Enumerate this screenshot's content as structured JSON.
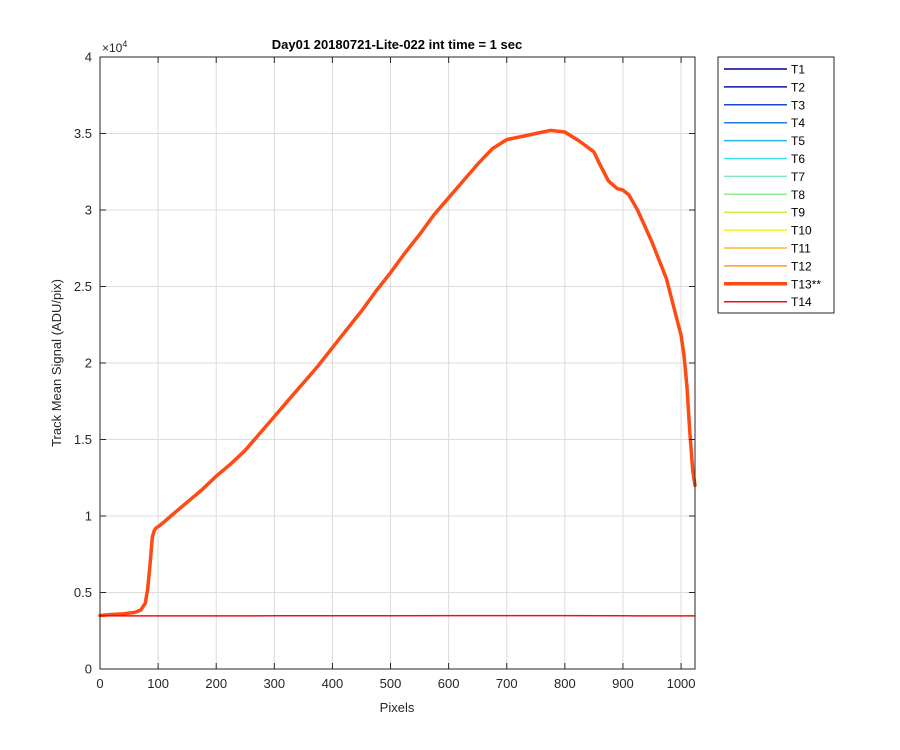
{
  "chart_data": {
    "type": "line",
    "title": "Day01 20180721-Lite-022 int time = 1 sec",
    "xlabel": "Pixels",
    "ylabel": "Track Mean Signal (ADU/pix)",
    "xlim": [
      0,
      1024
    ],
    "ylim": [
      0,
      40000
    ],
    "xticks": [
      0,
      100,
      200,
      300,
      400,
      500,
      600,
      700,
      800,
      900,
      1000
    ],
    "yticks": [
      0,
      5000,
      10000,
      15000,
      20000,
      25000,
      30000,
      35000,
      40000
    ],
    "ytick_labels": [
      "0",
      "0.5",
      "1",
      "1.5",
      "2",
      "2.5",
      "3",
      "3.5",
      "4"
    ],
    "y_exponent_label": "×10",
    "y_exponent_power": "4",
    "grid": true,
    "legend_position": "outside-right",
    "series": [
      {
        "name": "T1",
        "color": "#00008f",
        "width": 1.5,
        "shape": "hidden"
      },
      {
        "name": "T2",
        "color": "#0016b5",
        "width": 1.5,
        "shape": "hidden"
      },
      {
        "name": "T3",
        "color": "#1a47d6",
        "width": 1.5,
        "shape": "hidden"
      },
      {
        "name": "T4",
        "color": "#1f7fe0",
        "width": 1.5,
        "shape": "hidden"
      },
      {
        "name": "T5",
        "color": "#2ab4ee",
        "width": 1.5,
        "shape": "hidden"
      },
      {
        "name": "T6",
        "color": "#40e4e8",
        "width": 1.5,
        "shape": "hidden"
      },
      {
        "name": "T7",
        "color": "#80e8c8",
        "width": 1.5,
        "shape": "hidden"
      },
      {
        "name": "T8",
        "color": "#90ee90",
        "width": 1.5,
        "shape": "hidden"
      },
      {
        "name": "T9",
        "color": "#c8f050",
        "width": 1.5,
        "shape": "hidden"
      },
      {
        "name": "T10",
        "color": "#ffee22",
        "width": 1.5,
        "shape": "hidden"
      },
      {
        "name": "T11",
        "color": "#ffc020",
        "width": 1.5,
        "shape": "hidden"
      },
      {
        "name": "T12",
        "color": "#ff9a20",
        "width": 1.5,
        "shape": "hidden"
      },
      {
        "name": "T13**",
        "color": "#ff4a14",
        "width": 3.5,
        "shape": "curve",
        "x": [
          0,
          20,
          40,
          60,
          70,
          78,
          82,
          86,
          90,
          93,
          96,
          100,
          110,
          125,
          150,
          175,
          200,
          225,
          250,
          275,
          300,
          325,
          350,
          375,
          400,
          425,
          450,
          475,
          500,
          525,
          550,
          575,
          600,
          625,
          650,
          675,
          700,
          725,
          750,
          775,
          800,
          825,
          850,
          860,
          875,
          890,
          900,
          910,
          925,
          950,
          975,
          1000,
          1005,
          1010,
          1015,
          1020,
          1024
        ],
        "y": [
          3500,
          3560,
          3600,
          3700,
          3850,
          4300,
          5200,
          6800,
          8600,
          9000,
          9200,
          9300,
          9600,
          10100,
          10900,
          11700,
          12600,
          13400,
          14300,
          15400,
          16500,
          17600,
          18700,
          19800,
          21000,
          22200,
          23400,
          24700,
          25900,
          27200,
          28400,
          29700,
          30800,
          31900,
          33000,
          34000,
          34600,
          34800,
          35000,
          35200,
          35100,
          34500,
          33800,
          33000,
          31900,
          31400,
          31300,
          31000,
          30000,
          27900,
          25500,
          21800,
          20500,
          18500,
          15500,
          13000,
          12000
        ]
      },
      {
        "name": "T14",
        "color": "#ee1010",
        "width": 1.5,
        "shape": "flat",
        "x": [
          0,
          100,
          200,
          300,
          400,
          500,
          600,
          700,
          800,
          900,
          1024
        ],
        "y": [
          3480,
          3470,
          3470,
          3480,
          3480,
          3480,
          3490,
          3490,
          3490,
          3480,
          3470
        ]
      }
    ]
  }
}
